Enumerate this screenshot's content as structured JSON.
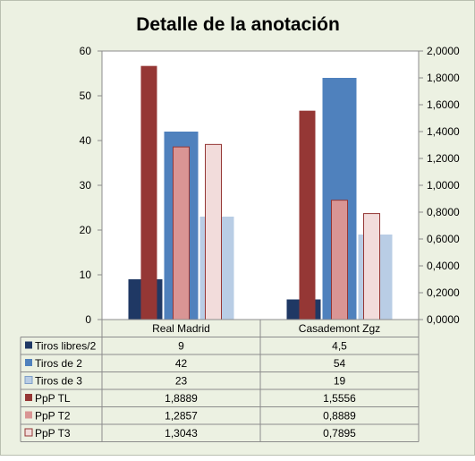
{
  "chart_data": {
    "type": "bar",
    "title": "Detalle de la anotación",
    "categories": [
      "Real Madrid",
      "Casademont Zgz"
    ],
    "series": [
      {
        "name": "Tiros libres/2",
        "axis": "left",
        "color": "#1f3864",
        "values": [
          9,
          4.5
        ],
        "labels": [
          "9",
          "4,5"
        ]
      },
      {
        "name": "Tiros de 2",
        "axis": "left",
        "color": "#4f81bd",
        "values": [
          42,
          54
        ],
        "labels": [
          "42",
          "54"
        ]
      },
      {
        "name": "Tiros de 3",
        "axis": "left",
        "color": "#b9cde5",
        "values": [
          23,
          19
        ],
        "labels": [
          "23",
          "19"
        ]
      },
      {
        "name": "PpP TL",
        "axis": "right",
        "color": "#953735",
        "values": [
          1.8889,
          1.5556
        ],
        "labels": [
          "1,8889",
          "1,5556"
        ]
      },
      {
        "name": "PpP T2",
        "axis": "right",
        "color": "#d99594",
        "values": [
          1.2857,
          0.8889
        ],
        "labels": [
          "1,2857",
          "0,8889"
        ]
      },
      {
        "name": "PpP T3",
        "axis": "right",
        "color": "#f2dcdb",
        "values": [
          1.3043,
          0.7895
        ],
        "labels": [
          "1,3043",
          "0,7895"
        ]
      }
    ],
    "y_left": {
      "range": [
        0,
        60
      ],
      "ticks": [
        "0",
        "10",
        "20",
        "30",
        "40",
        "50",
        "60"
      ]
    },
    "y_right": {
      "range": [
        0,
        2
      ],
      "ticks": [
        "0,0000",
        "0,2000",
        "0,4000",
        "0,6000",
        "0,8000",
        "1,0000",
        "1,2000",
        "1,4000",
        "1,6000",
        "1,8000",
        "2,0000"
      ]
    },
    "grid": false,
    "legend": "data-table-below"
  }
}
